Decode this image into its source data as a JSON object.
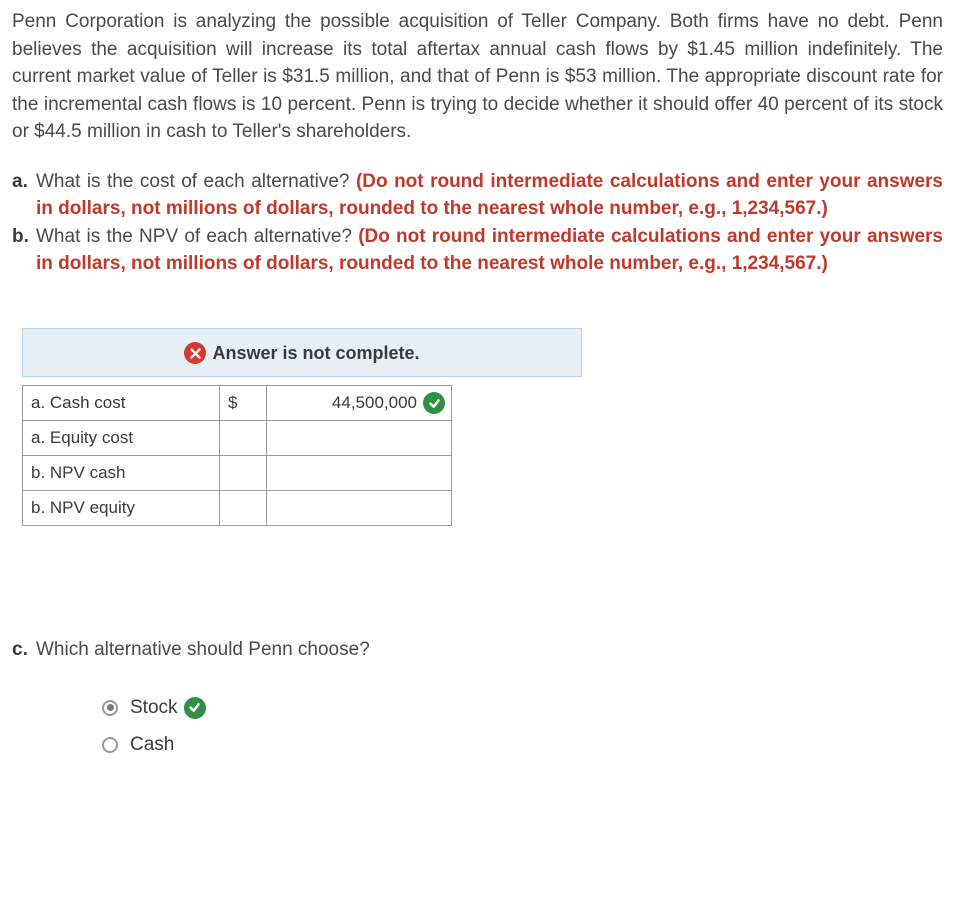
{
  "problem_text": "Penn Corporation is analyzing the possible acquisition of Teller Company. Both firms have no debt. Penn believes the acquisition will increase its total aftertax annual cash flows by $1.45 million indefinitely. The current market value of Teller is $31.5 million, and that of Penn is $53 million. The appropriate discount rate for the incremental cash flows is 10 percent. Penn is trying to decide whether it should offer 40 percent of its stock or $44.5 million in cash to Teller's shareholders.",
  "questions": {
    "a": {
      "letter": "a.",
      "text": "What is the cost of each alternative? ",
      "instr": "(Do not round intermediate calculations and enter your answers in dollars, not millions of dollars, rounded to the nearest whole number, e.g., 1,234,567.)"
    },
    "b": {
      "letter": "b.",
      "text": "What is the NPV of each alternative? ",
      "instr": "(Do not round intermediate calculations and enter your answers in dollars, not millions of dollars, rounded to the nearest whole number, e.g., 1,234,567.)"
    },
    "c": {
      "letter": "c.",
      "text": "Which alternative should Penn choose?"
    }
  },
  "status_banner": "Answer is not complete.",
  "table": {
    "rows": [
      {
        "label": "a. Cash cost",
        "currency": "$",
        "value": "44,500,000",
        "correct": true
      },
      {
        "label": "a. Equity cost",
        "currency": "",
        "value": "",
        "correct": false
      },
      {
        "label": "b. NPV cash",
        "currency": "",
        "value": "",
        "correct": false
      },
      {
        "label": "b. NPV equity",
        "currency": "",
        "value": "",
        "correct": false
      }
    ]
  },
  "radios": {
    "options": [
      {
        "label": "Stock",
        "selected": true,
        "correct": true
      },
      {
        "label": "Cash",
        "selected": false,
        "correct": false
      }
    ]
  },
  "colors": {
    "text": "#4a4a4a",
    "instr": "#c0392b",
    "banner_bg": "#e4f0f6",
    "banner_border": "#bcd4e0",
    "correct_badge": "#2f8f46",
    "error_badge": "#d63a2f",
    "table_border": "#9a9a9a"
  }
}
